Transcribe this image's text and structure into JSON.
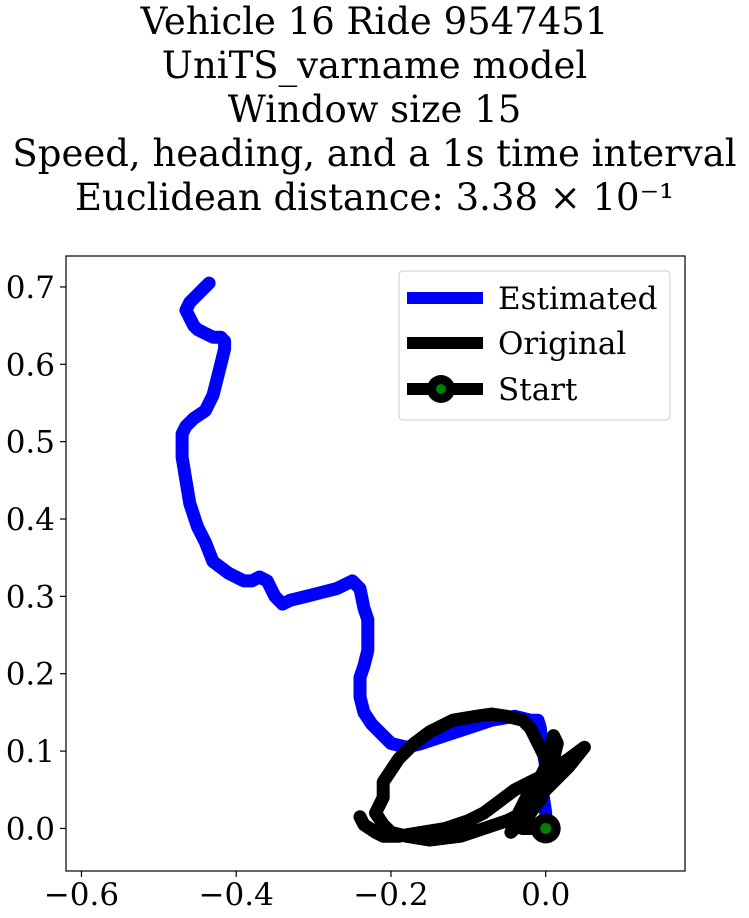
{
  "title_lines": [
    "Vehicle 16 Ride 9547451",
    "UniTS_varname model",
    "Window size 15",
    "Speed, heading, and a 1s time interval",
    "Euclidean distance: 3.38 × 10⁻¹"
  ],
  "chart_data": {
    "type": "line",
    "title": "Vehicle 16 Ride 9547451 / UniTS_varname model / Window size 15 / Speed, heading, and a 1s time interval / Euclidean distance: 3.38 × 10⁻¹",
    "xlabel": "",
    "ylabel": "",
    "xlim": [
      -0.62,
      0.18
    ],
    "ylim": [
      -0.055,
      0.74
    ],
    "x_ticks": [
      -0.6,
      -0.4,
      -0.2,
      0.0
    ],
    "x_tick_labels": [
      "−0.6",
      "−0.4",
      "−0.2",
      "0.0"
    ],
    "y_ticks": [
      0.0,
      0.1,
      0.2,
      0.3,
      0.4,
      0.5,
      0.6,
      0.7
    ],
    "y_tick_labels": [
      "0.0",
      "0.1",
      "0.2",
      "0.3",
      "0.4",
      "0.5",
      "0.6",
      "0.7"
    ],
    "grid": false,
    "legend_position": "top-right",
    "series": [
      {
        "name": "Estimated",
        "color": "#0000ff",
        "x": [
          0.0,
          0.0,
          -0.003,
          -0.005,
          0.0,
          -0.005,
          -0.007,
          -0.01,
          -0.02,
          -0.04,
          -0.07,
          -0.1,
          -0.13,
          -0.16,
          -0.18,
          -0.2,
          -0.21,
          -0.225,
          -0.235,
          -0.24,
          -0.24,
          -0.235,
          -0.23,
          -0.23,
          -0.23,
          -0.235,
          -0.24,
          -0.25,
          -0.27,
          -0.29,
          -0.31,
          -0.33,
          -0.34,
          -0.35,
          -0.355,
          -0.36,
          -0.37,
          -0.38,
          -0.39,
          -0.41,
          -0.43,
          -0.44,
          -0.45,
          -0.46,
          -0.465,
          -0.47,
          -0.47,
          -0.47,
          -0.465,
          -0.455,
          -0.44,
          -0.43,
          -0.425,
          -0.42,
          -0.415,
          -0.415,
          -0.42,
          -0.43,
          -0.44,
          -0.45,
          -0.455,
          -0.46,
          -0.465,
          -0.46,
          -0.45,
          -0.44,
          -0.435
        ],
        "y": [
          0.0,
          0.02,
          0.04,
          0.06,
          0.08,
          0.11,
          0.13,
          0.14,
          0.14,
          0.145,
          0.14,
          0.13,
          0.12,
          0.11,
          0.105,
          0.11,
          0.12,
          0.135,
          0.15,
          0.17,
          0.195,
          0.21,
          0.23,
          0.25,
          0.27,
          0.285,
          0.31,
          0.32,
          0.31,
          0.305,
          0.3,
          0.295,
          0.29,
          0.3,
          0.31,
          0.32,
          0.325,
          0.32,
          0.32,
          0.33,
          0.345,
          0.37,
          0.39,
          0.42,
          0.45,
          0.48,
          0.5,
          0.51,
          0.52,
          0.53,
          0.54,
          0.56,
          0.58,
          0.6,
          0.62,
          0.63,
          0.635,
          0.635,
          0.64,
          0.645,
          0.65,
          0.66,
          0.67,
          0.68,
          0.69,
          0.7,
          0.705
        ]
      },
      {
        "name": "Original",
        "color": "#000000",
        "x": [
          0.0,
          -0.02,
          -0.03,
          -0.02,
          -0.005,
          0.0,
          0.005,
          -0.01,
          -0.02,
          -0.03,
          -0.05,
          -0.07,
          -0.09,
          -0.12,
          -0.15,
          -0.17,
          -0.19,
          -0.2,
          -0.21,
          -0.21,
          -0.22,
          -0.21,
          -0.205,
          -0.2,
          -0.18,
          -0.15,
          -0.11,
          -0.08,
          -0.05,
          -0.03,
          -0.015,
          -0.005,
          0.0,
          0.01,
          0.015,
          0.01,
          0.005,
          0.0,
          -0.01,
          -0.025,
          -0.035,
          -0.04,
          -0.045,
          -0.04,
          -0.03,
          -0.01,
          0.01,
          0.03,
          0.05,
          0.03,
          0.0,
          -0.02,
          -0.04,
          -0.06,
          -0.08,
          -0.1,
          -0.13,
          -0.16,
          -0.19,
          -0.21,
          -0.22,
          -0.235,
          -0.24
        ],
        "y": [
          0.0,
          0.0,
          0.0,
          0.02,
          0.04,
          0.06,
          0.08,
          0.11,
          0.13,
          0.14,
          0.145,
          0.148,
          0.145,
          0.14,
          0.125,
          0.11,
          0.09,
          0.075,
          0.06,
          0.04,
          0.02,
          0.005,
          0.0,
          -0.005,
          -0.01,
          -0.015,
          -0.01,
          0.0,
          0.01,
          0.02,
          0.03,
          0.05,
          0.07,
          0.09,
          0.11,
          0.12,
          0.1,
          0.08,
          0.06,
          0.04,
          0.02,
          0.005,
          -0.005,
          0.0,
          0.02,
          0.04,
          0.06,
          0.08,
          0.105,
          0.09,
          0.07,
          0.06,
          0.05,
          0.035,
          0.02,
          0.01,
          0.0,
          -0.005,
          -0.01,
          -0.01,
          -0.005,
          0.005,
          0.015
        ]
      }
    ],
    "start_point": {
      "name": "Start",
      "x": 0.0,
      "y": 0.0,
      "outer_color": "#000000",
      "inner_color": "#008000"
    }
  }
}
